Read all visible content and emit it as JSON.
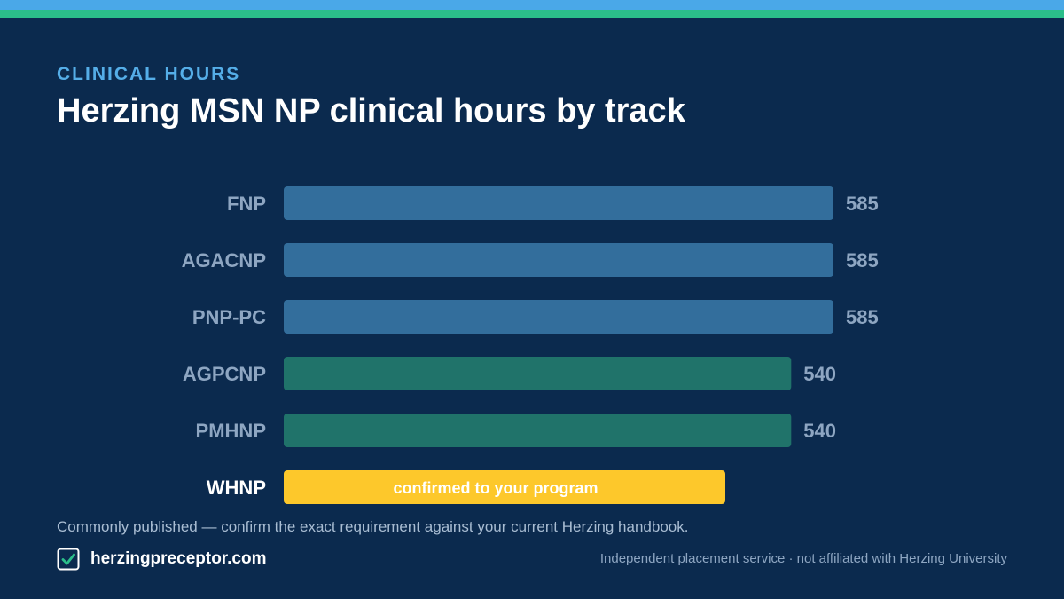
{
  "header": {
    "eyebrow": "CLINICAL HOURS",
    "title": "Herzing MSN NP clinical hours by track"
  },
  "colors": {
    "background": "#0b2a4e",
    "top_stripe_blue": "#4aa8e8",
    "top_stripe_green": "#2bbf8a",
    "bar_blue": "#336e9c",
    "bar_green": "#20736a",
    "bar_highlight": "#fdc82b",
    "label_muted": "#8ea6c2",
    "label_highlight": "#ffffff"
  },
  "chart_data": {
    "type": "bar",
    "orientation": "horizontal",
    "categories": [
      "FNP",
      "AGACNP",
      "PNP-PC",
      "AGPCNP",
      "PMHNP",
      "WHNP"
    ],
    "values": [
      585,
      585,
      585,
      540,
      540,
      null
    ],
    "value_labels": [
      "585",
      "585",
      "585",
      "540",
      "540",
      ""
    ],
    "bar_colors": [
      "#336e9c",
      "#336e9c",
      "#336e9c",
      "#20736a",
      "#20736a",
      "#fdc82b"
    ],
    "annotations": [
      {
        "category": "WHNP",
        "text": "confirmed to your program"
      }
    ],
    "xlim": [
      0,
      585
    ],
    "grid": false
  },
  "footer": {
    "note": "Commonly published — confirm the exact requirement against your current Herzing handbook.",
    "brand_name": "herzingpreceptor.com",
    "brand_icon": "checkbox-icon",
    "disclaimer": "Independent placement service · not affiliated with Herzing University"
  }
}
